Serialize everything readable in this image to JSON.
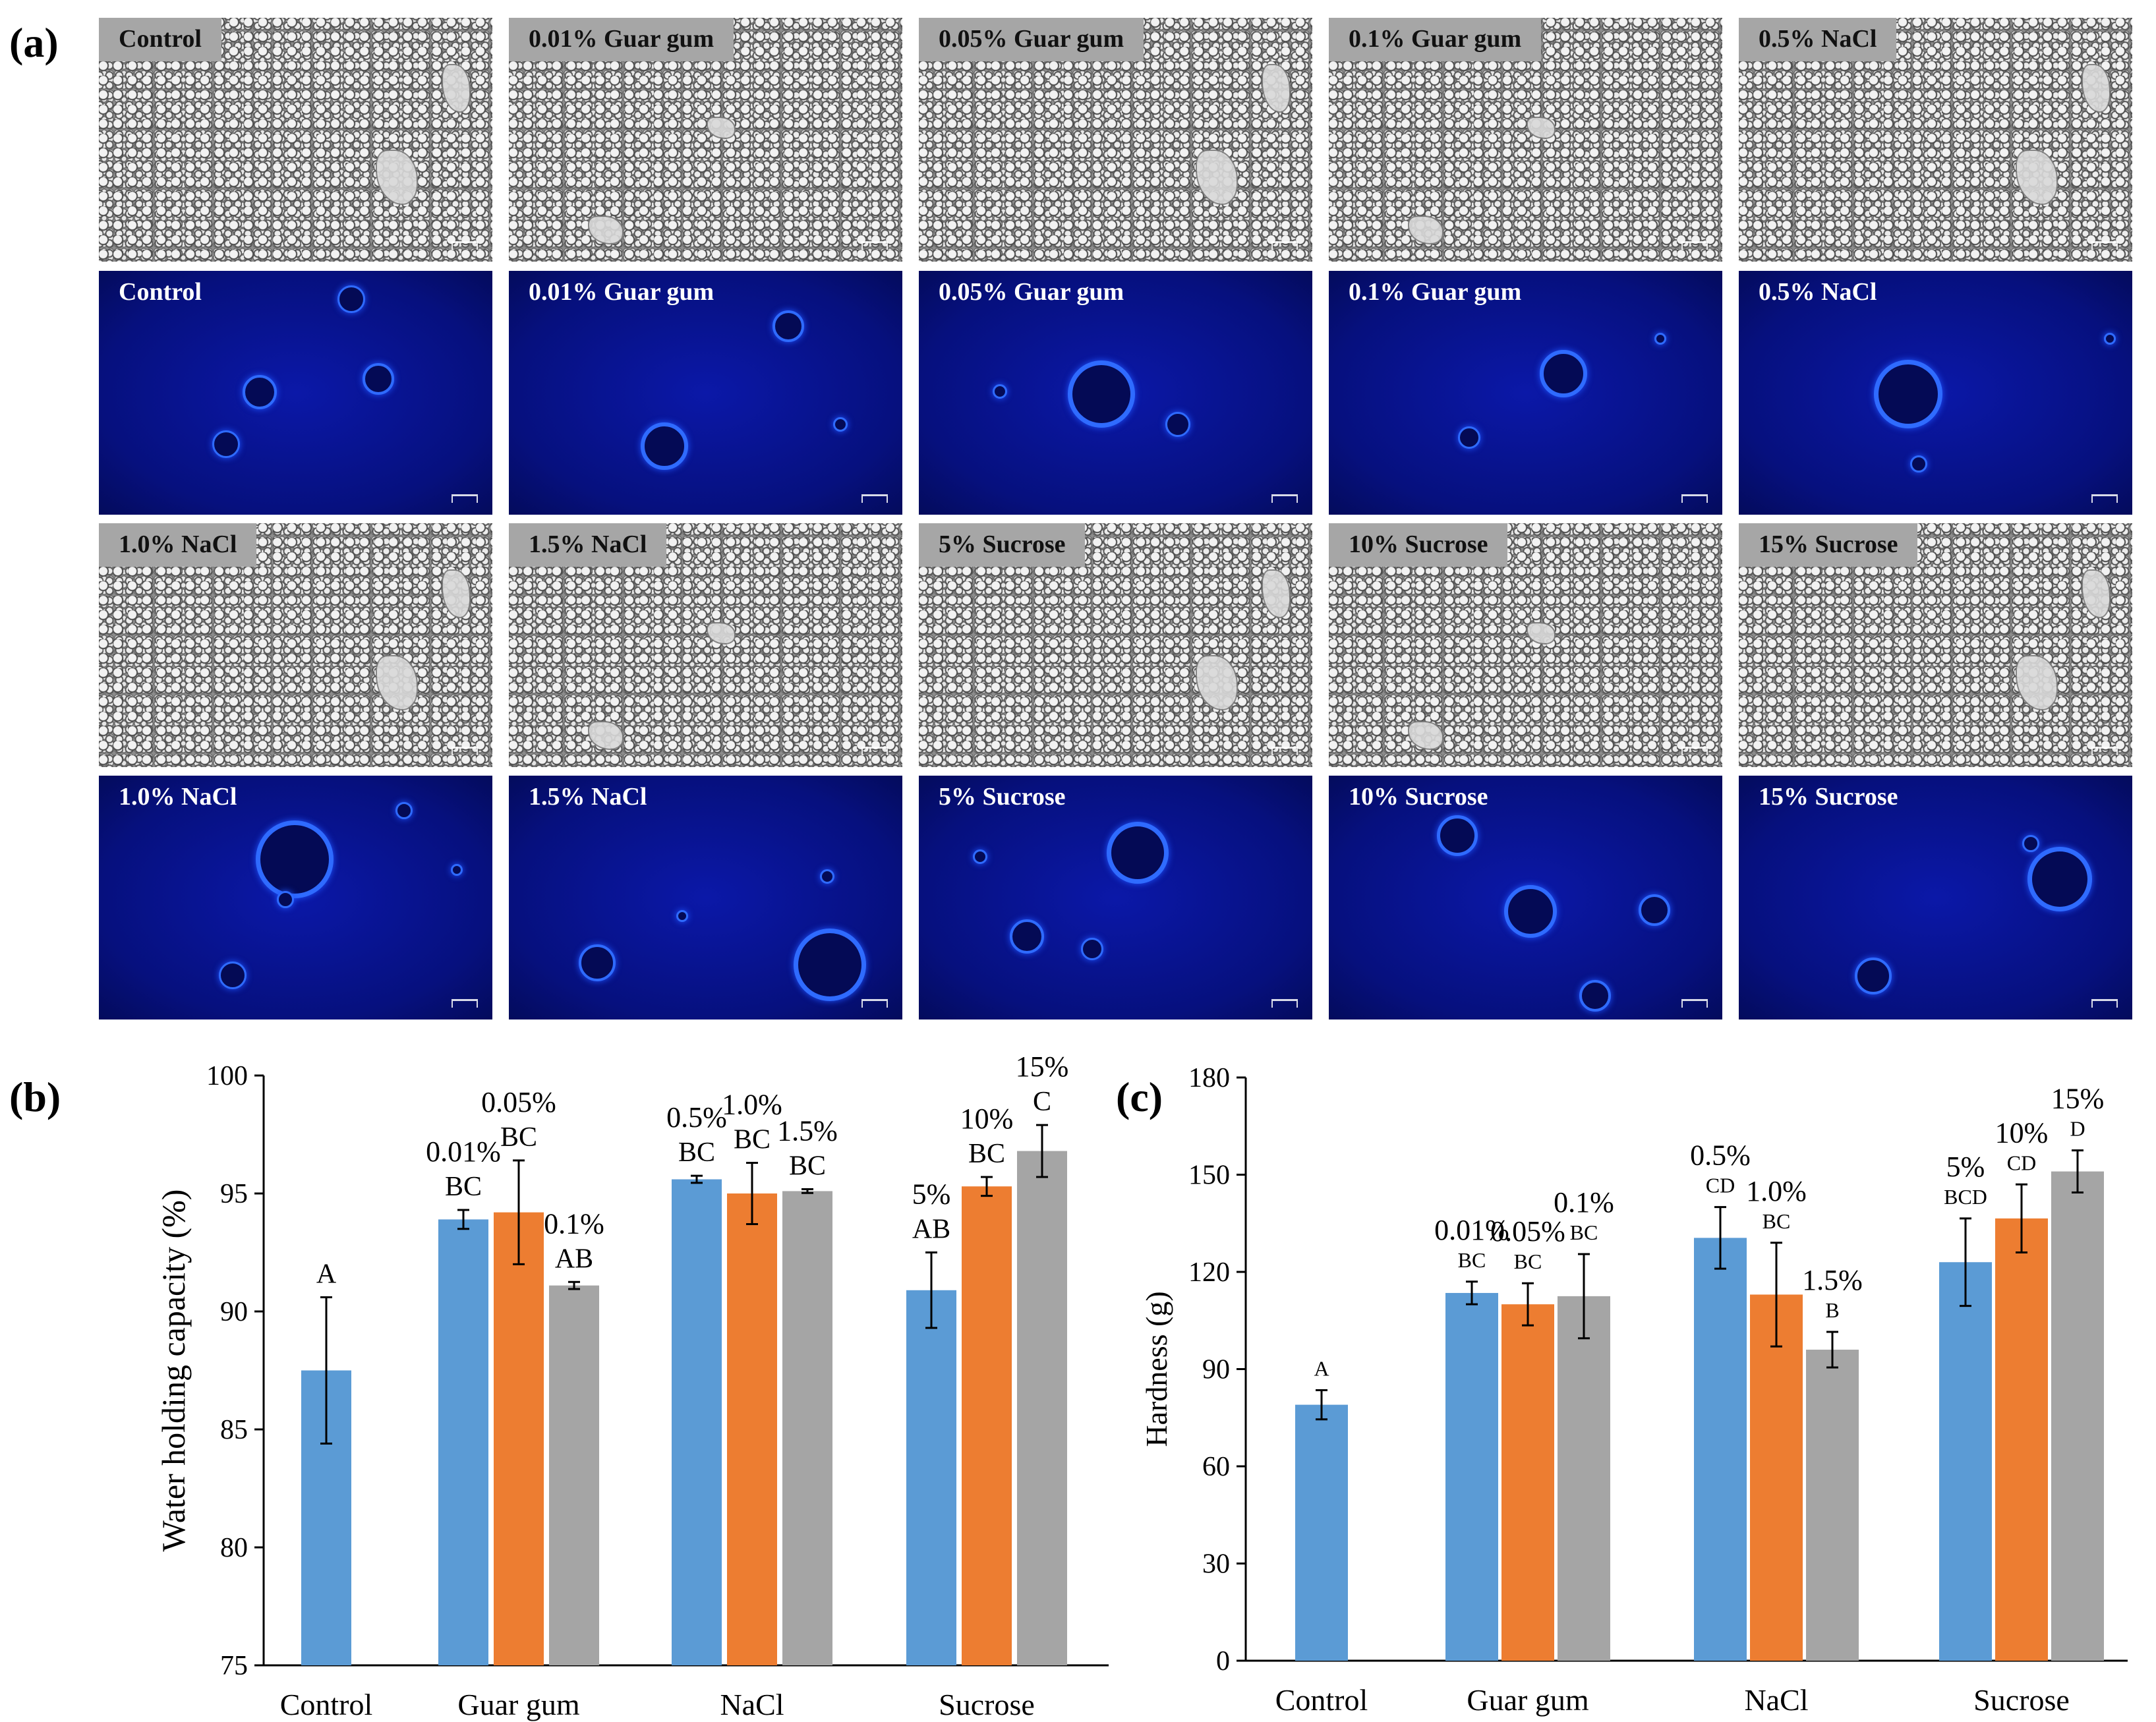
{
  "figure": {
    "panel_a": "(a)",
    "panel_b": "(b)",
    "panel_c": "(c)"
  },
  "micrographs": {
    "rows": [
      {
        "type": "brightfield",
        "labels": [
          "Control",
          "0.01% Guar gum",
          "0.05% Guar gum",
          "0.1% Guar gum",
          "0.5% NaCl"
        ]
      },
      {
        "type": "fluorescence",
        "labels": [
          "Control",
          "0.01% Guar gum",
          "0.05% Guar gum",
          "0.1% Guar gum",
          "0.5% NaCl"
        ]
      },
      {
        "type": "brightfield",
        "labels": [
          "1.0% NaCl",
          "1.5% NaCl",
          "5% Sucrose",
          "10% Sucrose",
          "15% Sucrose"
        ]
      },
      {
        "type": "fluorescence",
        "labels": [
          "1.0% NaCl",
          "1.5% NaCl",
          "5% Sucrose",
          "10% Sucrose",
          "15% Sucrose"
        ]
      }
    ],
    "colors": {
      "brightfield_label_bg": "#a6a6a6",
      "fluorescence_bg": "#06107e",
      "droplet_ring": "#2f6bff"
    }
  },
  "chart_data": [
    {
      "type": "bar",
      "panel": "(b)",
      "ylabel": "Water holding capacity (%)",
      "xlabel": "",
      "ylim": [
        75,
        100
      ],
      "yticks": [
        75,
        80,
        85,
        90,
        95,
        100
      ],
      "categories": [
        "Control",
        "Guar gum",
        "NaCl",
        "Sucrose"
      ],
      "series_colors": [
        "#5b9bd5",
        "#ed7d31",
        "#a5a5a5"
      ],
      "bars": [
        {
          "group": 0,
          "slot": 0,
          "value": 87.5,
          "error": 3.1,
          "conc": "",
          "letter": "A"
        },
        {
          "group": 1,
          "slot": 0,
          "value": 93.9,
          "error": 0.4,
          "conc": "0.01%",
          "letter": "BC"
        },
        {
          "group": 1,
          "slot": 1,
          "value": 94.2,
          "error": 2.2,
          "conc": "0.05%",
          "letter": "BC"
        },
        {
          "group": 1,
          "slot": 2,
          "value": 91.1,
          "error": 0.15,
          "conc": "0.1%",
          "letter": "AB"
        },
        {
          "group": 2,
          "slot": 0,
          "value": 95.6,
          "error": 0.15,
          "conc": "0.5%",
          "letter": "BC"
        },
        {
          "group": 2,
          "slot": 1,
          "value": 95.0,
          "error": 1.3,
          "conc": "1.0%",
          "letter": "BC"
        },
        {
          "group": 2,
          "slot": 2,
          "value": 95.1,
          "error": 0.08,
          "conc": "1.5%",
          "letter": "BC"
        },
        {
          "group": 3,
          "slot": 0,
          "value": 90.9,
          "error": 1.6,
          "conc": "5%",
          "letter": "AB"
        },
        {
          "group": 3,
          "slot": 1,
          "value": 95.3,
          "error": 0.4,
          "conc": "10%",
          "letter": "BC"
        },
        {
          "group": 3,
          "slot": 2,
          "value": 96.8,
          "error": 1.1,
          "conc": "15%",
          "letter": "C"
        }
      ]
    },
    {
      "type": "bar",
      "panel": "(c)",
      "ylabel": "Hardness (g)",
      "xlabel": "",
      "ylim": [
        0,
        180
      ],
      "yticks": [
        0,
        30,
        60,
        90,
        120,
        150,
        180
      ],
      "categories": [
        "Control",
        "Guar gum",
        "NaCl",
        "Sucrose"
      ],
      "series_colors": [
        "#5b9bd5",
        "#ed7d31",
        "#a5a5a5"
      ],
      "bars": [
        {
          "group": 0,
          "slot": 0,
          "value": 79,
          "error": 4.5,
          "conc": "",
          "letter": "A"
        },
        {
          "group": 1,
          "slot": 0,
          "value": 113.5,
          "error": 3.5,
          "conc": "0.01%",
          "letter": "BC"
        },
        {
          "group": 1,
          "slot": 1,
          "value": 110,
          "error": 6.5,
          "conc": "0.05%",
          "letter": "BC"
        },
        {
          "group": 1,
          "slot": 2,
          "value": 112.5,
          "error": 13,
          "conc": "0.1%",
          "letter": "BC"
        },
        {
          "group": 2,
          "slot": 0,
          "value": 130.5,
          "error": 9.5,
          "conc": "0.5%",
          "letter": "CD"
        },
        {
          "group": 2,
          "slot": 1,
          "value": 113,
          "error": 16,
          "conc": "1.0%",
          "letter": "BC"
        },
        {
          "group": 2,
          "slot": 2,
          "value": 96,
          "error": 5.5,
          "conc": "1.5%",
          "letter": "B"
        },
        {
          "group": 3,
          "slot": 0,
          "value": 123,
          "error": 13.5,
          "conc": "5%",
          "letter": "BCD"
        },
        {
          "group": 3,
          "slot": 1,
          "value": 136.5,
          "error": 10.5,
          "conc": "10%",
          "letter": "CD"
        },
        {
          "group": 3,
          "slot": 2,
          "value": 151,
          "error": 6.5,
          "conc": "15%",
          "letter": "D"
        }
      ]
    }
  ]
}
